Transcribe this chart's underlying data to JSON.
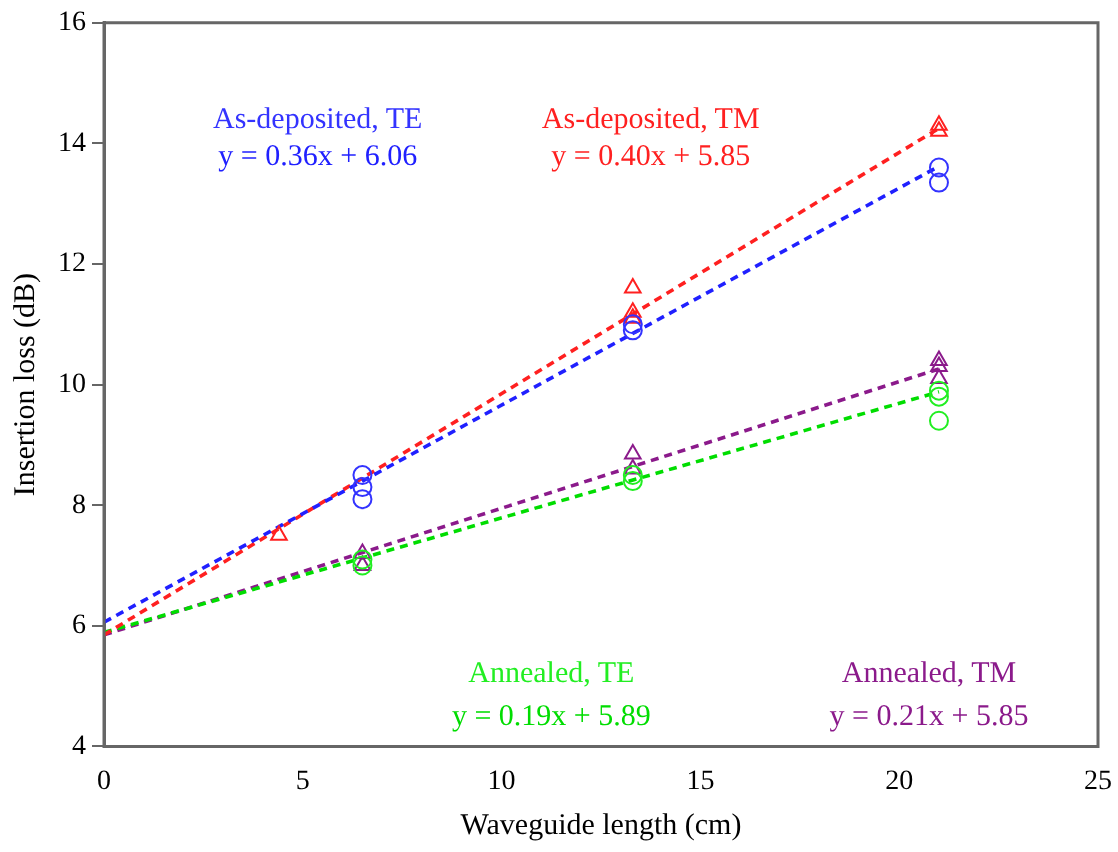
{
  "chart_data": {
    "type": "scatter",
    "xlabel": "Waveguide length (cm)",
    "ylabel": "Insertion loss (dB)",
    "xlim": [
      0,
      25
    ],
    "xticks": [
      0,
      5,
      10,
      15,
      20,
      25
    ],
    "ylim": [
      4,
      16
    ],
    "yticks": [
      4,
      6,
      8,
      10,
      12,
      14,
      16
    ],
    "grid": false,
    "legend": false,
    "series": [
      {
        "name": "As-deposited, TE",
        "color": "#3333ff",
        "marker": "circle",
        "x": [
          6.5,
          6.5,
          6.5,
          13.3,
          13.3,
          21,
          21
        ],
        "values": [
          8.5,
          8.3,
          8.1,
          11.0,
          10.9,
          13.6,
          13.35
        ]
      },
      {
        "name": "As-deposited, TM",
        "color": "#ff2020",
        "marker": "triangle",
        "x": [
          4.4,
          13.3,
          13.3,
          13.3,
          21,
          21
        ],
        "values": [
          7.5,
          11.6,
          11.2,
          11.1,
          14.3,
          14.2
        ]
      },
      {
        "name": "Annealed, TE",
        "color": "#22ee22",
        "marker": "circle",
        "x": [
          6.5,
          6.5,
          13.3,
          13.3,
          21,
          21,
          21
        ],
        "values": [
          7.1,
          7.0,
          8.4,
          8.5,
          9.4,
          9.8,
          9.9
        ]
      },
      {
        "name": "Annealed, TM",
        "color": "#8b1a8b",
        "marker": "triangle",
        "x": [
          6.5,
          6.5,
          13.3,
          13.3,
          21,
          21,
          21
        ],
        "values": [
          7.2,
          7.0,
          8.85,
          8.6,
          10.4,
          10.3,
          10.1
        ]
      },
      {
        "name": "y = 0.36x + 6.06",
        "type": "line",
        "line_style": "dashed",
        "marker": "none",
        "color": "#2020ff",
        "x": [
          0,
          21
        ],
        "values": [
          6.06,
          13.62
        ]
      },
      {
        "name": "y = 0.40x + 5.85",
        "type": "line",
        "line_style": "dashed",
        "marker": "none",
        "color": "#ff2020",
        "x": [
          0,
          21
        ],
        "values": [
          5.85,
          14.25
        ]
      },
      {
        "name": "y = 0.19x + 5.89",
        "type": "line",
        "line_style": "dashed",
        "marker": "none",
        "color": "#00dd00",
        "x": [
          0,
          21
        ],
        "values": [
          5.89,
          9.88
        ]
      },
      {
        "name": "y = 0.21x + 5.85",
        "type": "line",
        "line_style": "dashed",
        "marker": "none",
        "color": "#8b1a8b",
        "x": [
          0,
          21
        ],
        "values": [
          5.85,
          10.26
        ]
      }
    ]
  }
}
